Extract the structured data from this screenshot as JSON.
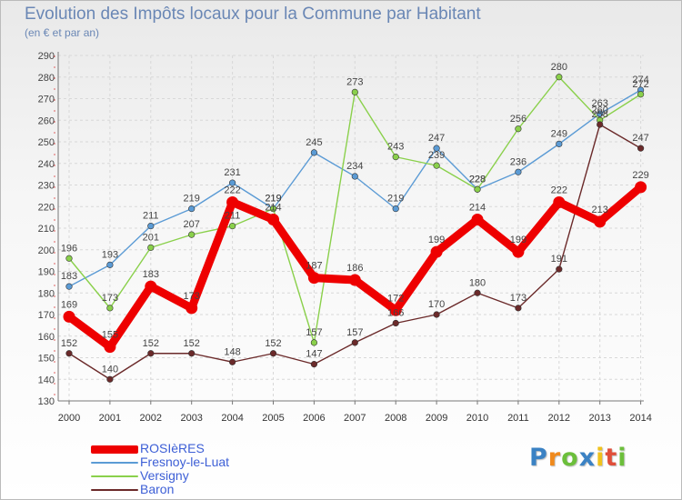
{
  "title": "Evolution des Impôts locaux pour la Commune par Habitant",
  "subtitle": "(en € et par an)",
  "logo": {
    "text": "Proxiti",
    "letters": [
      {
        "ch": "P",
        "color": "#3b82c4"
      },
      {
        "ch": "r",
        "color": "#f08a1c"
      },
      {
        "ch": "o",
        "color": "#6cbf3b"
      },
      {
        "ch": "x",
        "color": "#3b82c4"
      },
      {
        "ch": "i",
        "color": "#f0c21c"
      },
      {
        "ch": "t",
        "color": "#e04f3a"
      },
      {
        "ch": "i",
        "color": "#6cbf3b"
      }
    ]
  },
  "chart_data": {
    "type": "line",
    "title": "Evolution des Impôts locaux pour la Commune par Habitant",
    "xlabel": "",
    "ylabel": "(en € et par an)",
    "ylim": [
      130,
      290
    ],
    "yticks": [
      130,
      140,
      150,
      160,
      170,
      180,
      190,
      200,
      210,
      220,
      230,
      240,
      250,
      260,
      270,
      280,
      290
    ],
    "grid": true,
    "legend_position": "bottom-left",
    "x": [
      "2000",
      "2001",
      "2002",
      "2003",
      "2004",
      "2005",
      "2006",
      "2007",
      "2008",
      "2009",
      "2010",
      "2011",
      "2012",
      "2013",
      "2014"
    ],
    "series": [
      {
        "name": "ROSIèRES",
        "color": "#ee0000",
        "emphasis": true,
        "values": [
          169,
          155,
          183,
          173,
          222,
          214,
          187,
          186,
          172,
          199,
          214,
          199,
          222,
          213,
          229
        ],
        "labels": [
          "169",
          "155",
          "183",
          "173",
          "222",
          "214",
          "187",
          "186",
          "172",
          "199",
          "214",
          "199",
          "222",
          "213",
          "229"
        ]
      },
      {
        "name": "Fresnoy-le-Luat",
        "color": "#5b9bd5",
        "values": [
          183,
          193,
          211,
          219,
          231,
          219,
          245,
          234,
          219,
          247,
          228,
          236,
          249,
          263,
          274
        ],
        "labels": [
          "183",
          "193",
          "211",
          "219",
          "231",
          "219",
          "245",
          "234",
          "219",
          "247",
          "228",
          "236",
          "249",
          "263",
          "274"
        ]
      },
      {
        "name": "Versigny",
        "color": "#8ad04b",
        "values": [
          196,
          173,
          201,
          207,
          211,
          219,
          157,
          273,
          243,
          239,
          228,
          256,
          280,
          260,
          272
        ],
        "labels": [
          "196",
          "173",
          "201",
          "207",
          "211",
          "219",
          "157",
          "273",
          "243",
          "239",
          "228",
          "256",
          "280",
          "260",
          "272"
        ]
      },
      {
        "name": "Baron",
        "color": "#6b2a2a",
        "values": [
          152,
          140,
          152,
          152,
          148,
          152,
          147,
          157,
          166,
          170,
          180,
          173,
          191,
          258,
          247
        ],
        "labels": [
          "152",
          "140",
          "152",
          "152",
          "148",
          "152",
          "147",
          "157",
          "166",
          "170",
          "180",
          "173",
          "191",
          "258",
          "247"
        ]
      }
    ]
  }
}
